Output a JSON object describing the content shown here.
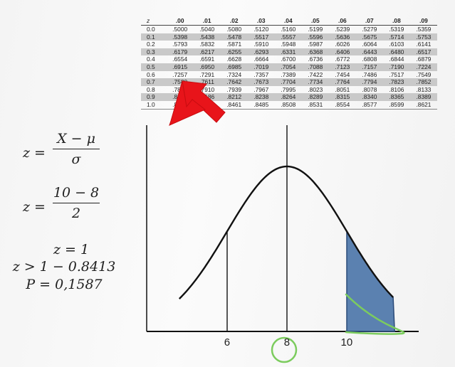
{
  "z_table": {
    "headers": [
      "z",
      ".00",
      ".01",
      ".02",
      ".03",
      ".04",
      ".05",
      ".06",
      ".07",
      ".08",
      ".09"
    ],
    "rows": [
      {
        "z": "0.0",
        "values": [
          ".5000",
          ".5040",
          ".5080",
          ".5120",
          ".5160",
          ".5199",
          ".5239",
          ".5279",
          ".5319",
          ".5359"
        ]
      },
      {
        "z": "0.1",
        "values": [
          ".5398",
          ".5438",
          ".5478",
          ".5517",
          ".5557",
          ".5596",
          ".5636",
          ".5675",
          ".5714",
          ".5753"
        ]
      },
      {
        "z": "0.2",
        "values": [
          ".5793",
          ".5832",
          ".5871",
          ".5910",
          ".5948",
          ".5987",
          ".6026",
          ".6064",
          ".6103",
          ".6141"
        ]
      },
      {
        "z": "0.3",
        "values": [
          ".6179",
          ".6217",
          ".6255",
          ".6293",
          ".6331",
          ".6368",
          ".6406",
          ".6443",
          ".6480",
          ".6517"
        ]
      },
      {
        "z": "0.4",
        "values": [
          ".6554",
          ".6591",
          ".6628",
          ".6664",
          ".6700",
          ".6736",
          ".6772",
          ".6808",
          ".6844",
          ".6879"
        ]
      },
      {
        "z": "0.5",
        "values": [
          ".6915",
          ".6950",
          ".6985",
          ".7019",
          ".7054",
          ".7088",
          ".7123",
          ".7157",
          ".7190",
          ".7224"
        ]
      },
      {
        "z": "0.6",
        "values": [
          ".7257",
          ".7291",
          ".7324",
          ".7357",
          ".7389",
          ".7422",
          ".7454",
          ".7486",
          ".7517",
          ".7549"
        ]
      },
      {
        "z": "0.7",
        "values": [
          ".7580",
          ".7611",
          ".7642",
          ".7673",
          ".7704",
          ".7734",
          ".7764",
          ".7794",
          ".7823",
          ".7852"
        ]
      },
      {
        "z": "0.8",
        "values": [
          ".7881",
          ".7910",
          ".7939",
          ".7967",
          ".7995",
          ".8023",
          ".8051",
          ".8078",
          ".8106",
          ".8133"
        ]
      },
      {
        "z": "0.9",
        "values": [
          ".8159",
          ".8186",
          ".8212",
          ".8238",
          ".8264",
          ".8289",
          ".8315",
          ".8340",
          ".8365",
          ".8389"
        ]
      },
      {
        "z": "1.0",
        "values": [
          ".8413",
          ".8438",
          ".8461",
          ".8485",
          ".8508",
          ".8531",
          ".8554",
          ".8577",
          ".8599",
          ".8621"
        ]
      }
    ],
    "shaded_rows": [
      "0.1",
      "0.3",
      "0.5",
      "0.7",
      "0.9"
    ],
    "highlighted_value": ".8413"
  },
  "formulas": {
    "eq1_lhs": "z =",
    "eq1_num": "X − μ",
    "eq1_den": "σ",
    "eq2_lhs": "z =",
    "eq2_num": "10 − 8",
    "eq2_den": "2",
    "line3": "z = 1",
    "line4": "z > 1 − 0.8413",
    "line5": "P = 0,1587"
  },
  "chart_data": {
    "type": "area",
    "distribution": "normal",
    "mean": 8,
    "sd": 2,
    "x_ticks": [
      "6",
      "8",
      "10"
    ],
    "x_tick_values": [
      6,
      8,
      10
    ],
    "shaded_region": {
      "from": 10,
      "to": "+inf"
    },
    "colors": {
      "curve": "#111111",
      "shade": "#4a74a8",
      "arrow": "#e8141a",
      "highlight": "#7ccc5e"
    }
  }
}
